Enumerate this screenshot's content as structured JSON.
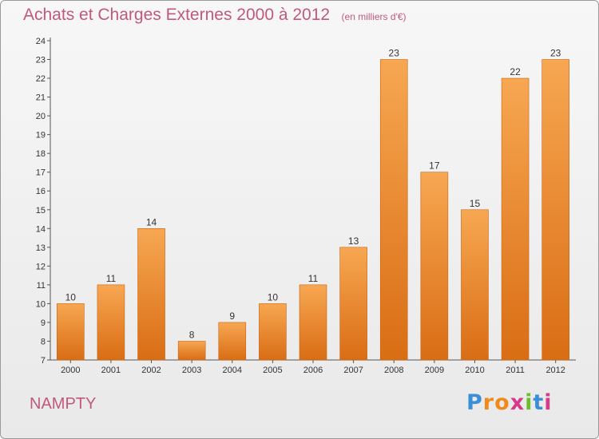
{
  "chart_data": {
    "type": "bar",
    "title": "Achats et Charges Externes 2000 à 2012",
    "subtitle": "(en milliers d'€)",
    "categories": [
      "2000",
      "2001",
      "2002",
      "2003",
      "2004",
      "2005",
      "2006",
      "2007",
      "2008",
      "2009",
      "2010",
      "2011",
      "2012"
    ],
    "values": [
      10,
      11,
      14,
      8,
      9,
      10,
      11,
      13,
      23,
      17,
      15,
      22,
      23
    ],
    "ylim": [
      7,
      24
    ],
    "yticks": [
      7,
      8,
      9,
      10,
      11,
      12,
      13,
      14,
      15,
      16,
      17,
      18,
      19,
      20,
      21,
      22,
      23,
      24
    ],
    "grid": false,
    "bar_color": "#f08a2a"
  },
  "footer": {
    "place": "NAMPTY",
    "logo_letters": [
      "P",
      "r",
      "o",
      "x",
      "i",
      "t",
      "i"
    ]
  }
}
